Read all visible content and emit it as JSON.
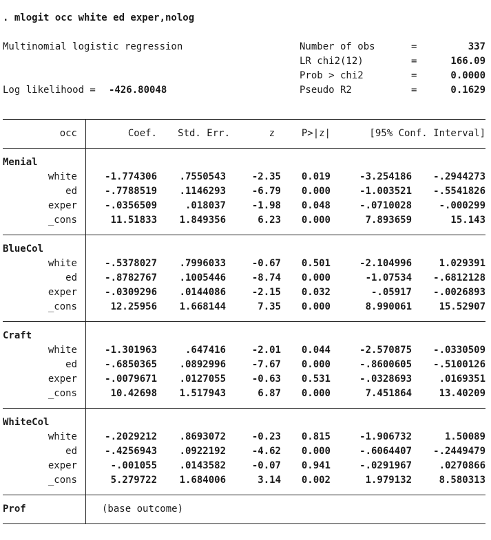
{
  "command": ". mlogit occ white ed exper,nolog",
  "model_title": "Multinomial logistic regression",
  "log_likelihood": {
    "label": "Log likelihood = ",
    "value": "-426.80048"
  },
  "stats": [
    {
      "label": "Number of obs",
      "eq": "=",
      "value": "337"
    },
    {
      "label": "LR chi2(12)",
      "eq": "=",
      "value": "166.09"
    },
    {
      "label": "Prob > chi2",
      "eq": "=",
      "value": "0.0000"
    },
    {
      "label": "Pseudo R2",
      "eq": "=",
      "value": "0.1629"
    }
  ],
  "header": {
    "depvar": "occ",
    "coef": "Coef.",
    "se": "Std. Err.",
    "z": "z",
    "p": "P>|z|",
    "ci": "[95% Conf. Interval]"
  },
  "groups": [
    {
      "name": "Menial",
      "rows": [
        {
          "var": "white",
          "coef": "-1.774306",
          "se": ".7550543",
          "z": "-2.35",
          "p": "0.019",
          "lo": "-3.254186",
          "hi": "-.2944273"
        },
        {
          "var": "ed",
          "coef": "-.7788519",
          "se": ".1146293",
          "z": "-6.79",
          "p": "0.000",
          "lo": "-1.003521",
          "hi": "-.5541826"
        },
        {
          "var": "exper",
          "coef": "-.0356509",
          "se": ".018037",
          "z": "-1.98",
          "p": "0.048",
          "lo": "-.0710028",
          "hi": "-.000299"
        },
        {
          "var": "_cons",
          "coef": "11.51833",
          "se": "1.849356",
          "z": "6.23",
          "p": "0.000",
          "lo": "7.893659",
          "hi": "15.143"
        }
      ]
    },
    {
      "name": "BlueCol",
      "rows": [
        {
          "var": "white",
          "coef": "-.5378027",
          "se": ".7996033",
          "z": "-0.67",
          "p": "0.501",
          "lo": "-2.104996",
          "hi": "1.029391"
        },
        {
          "var": "ed",
          "coef": "-.8782767",
          "se": ".1005446",
          "z": "-8.74",
          "p": "0.000",
          "lo": "-1.07534",
          "hi": "-.6812128"
        },
        {
          "var": "exper",
          "coef": "-.0309296",
          "se": ".0144086",
          "z": "-2.15",
          "p": "0.032",
          "lo": "-.05917",
          "hi": "-.0026893"
        },
        {
          "var": "_cons",
          "coef": "12.25956",
          "se": "1.668144",
          "z": "7.35",
          "p": "0.000",
          "lo": "8.990061",
          "hi": "15.52907"
        }
      ]
    },
    {
      "name": "Craft",
      "rows": [
        {
          "var": "white",
          "coef": "-1.301963",
          "se": ".647416",
          "z": "-2.01",
          "p": "0.044",
          "lo": "-2.570875",
          "hi": "-.0330509"
        },
        {
          "var": "ed",
          "coef": "-.6850365",
          "se": ".0892996",
          "z": "-7.67",
          "p": "0.000",
          "lo": "-.8600605",
          "hi": "-.5100126"
        },
        {
          "var": "exper",
          "coef": "-.0079671",
          "se": ".0127055",
          "z": "-0.63",
          "p": "0.531",
          "lo": "-.0328693",
          "hi": ".0169351"
        },
        {
          "var": "_cons",
          "coef": "10.42698",
          "se": "1.517943",
          "z": "6.87",
          "p": "0.000",
          "lo": "7.451864",
          "hi": "13.40209"
        }
      ]
    },
    {
      "name": "WhiteCol",
      "rows": [
        {
          "var": "white",
          "coef": "-.2029212",
          "se": ".8693072",
          "z": "-0.23",
          "p": "0.815",
          "lo": "-1.906732",
          "hi": "1.50089"
        },
        {
          "var": "ed",
          "coef": "-.4256943",
          "se": ".0922192",
          "z": "-4.62",
          "p": "0.000",
          "lo": "-.6064407",
          "hi": "-.2449479"
        },
        {
          "var": "exper",
          "coef": "-.001055",
          "se": ".0143582",
          "z": "-0.07",
          "p": "0.941",
          "lo": "-.0291967",
          "hi": ".0270866"
        },
        {
          "var": "_cons",
          "coef": "5.279722",
          "se": "1.684006",
          "z": "3.14",
          "p": "0.002",
          "lo": "1.979132",
          "hi": "8.580313"
        }
      ]
    }
  ],
  "base": {
    "name": "Prof",
    "note": "(base outcome)"
  }
}
